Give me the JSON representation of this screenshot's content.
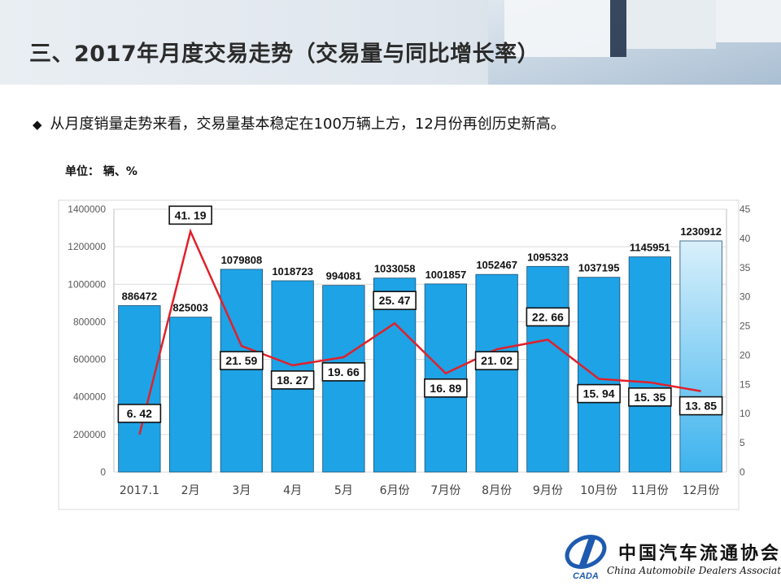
{
  "header": {
    "title": "三、2017年月度交易走势（交易量与同比增长率）"
  },
  "bullet": {
    "text": "从月度销量走势来看，交易量基本稳定在100万辆上方，12月份再创历史新高。"
  },
  "unit_label": "单位：  辆、%",
  "colors": {
    "bar": "#1ea3e6",
    "bar_last_top": "#d9f0fb",
    "bar_last_bottom": "#3db3ee",
    "line": "#e1202a"
  },
  "chart_data": {
    "type": "bar",
    "categories": [
      "2017.1",
      "2月",
      "3月",
      "4月",
      "5月",
      "6月份",
      "7月份",
      "8月份",
      "9月份",
      "10月份",
      "11月份",
      "12月份"
    ],
    "series": [
      {
        "values": [
          886472,
          825003,
          1079808,
          1018723,
          994081,
          1033058,
          1001857,
          1052467,
          1095323,
          1037195,
          1145951,
          1230912
        ]
      },
      {
        "type": "line",
        "axis": "right",
        "values": [
          6.42,
          41.19,
          21.59,
          18.27,
          19.66,
          25.47,
          16.89,
          21.02,
          22.66,
          15.94,
          15.35,
          13.85
        ]
      }
    ],
    "bar_labels": [
      "886472",
      "825003",
      "1079808",
      "1018723",
      "994081",
      "1033058",
      "1001857",
      "1052467",
      "1095323",
      "1037195",
      "1145951",
      "1230912"
    ],
    "line_labels": [
      "6. 42",
      "41. 19",
      "21. 59",
      "18. 27",
      "19. 66",
      "25. 47",
      "16. 89",
      "21. 02",
      "22. 66",
      "15. 94",
      "15. 35",
      "13. 85"
    ],
    "left_axis": {
      "min": 0,
      "max": 1400000,
      "ticks": [
        "0",
        "200000",
        "400000",
        "600000",
        "800000",
        "1000000",
        "1200000",
        "1400000"
      ]
    },
    "right_axis": {
      "min": 0,
      "max": 45,
      "ticks": [
        "0",
        "5",
        "10",
        "15",
        "20",
        "25",
        "30",
        "35",
        "40",
        "45"
      ]
    },
    "grid": true
  },
  "logo": {
    "text_cn": "中国汽车流通协会",
    "text_en": "China Automobile Dealers Association",
    "abbr": "CADA"
  }
}
